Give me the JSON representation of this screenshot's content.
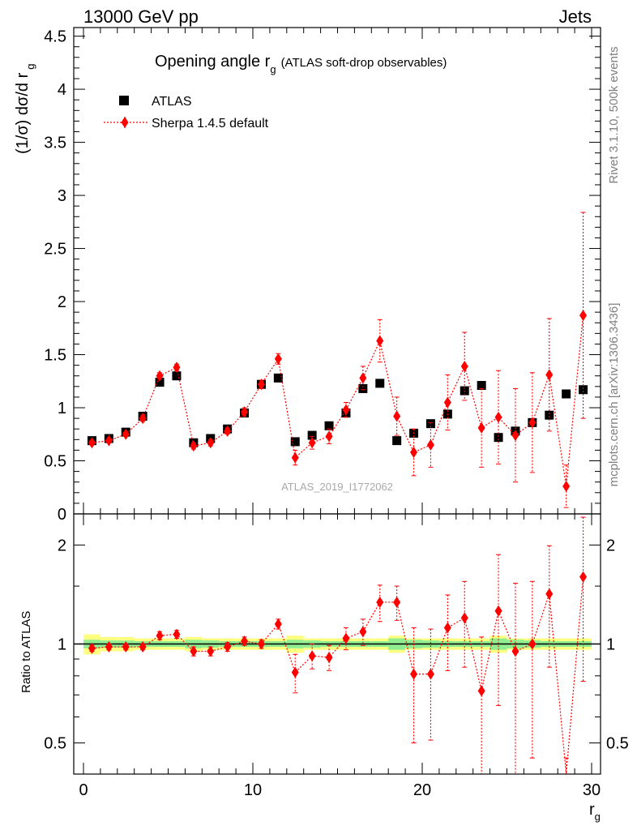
{
  "header": {
    "left": "13000 GeV pp",
    "right": "Jets"
  },
  "title": {
    "main": "Opening angle r",
    "sub": "g",
    "extra": "(ATLAS soft-drop observables)"
  },
  "side_labels": {
    "top": "Rivet 3.1.10,  500k events",
    "bottom": "mcplots.cern.ch [arXiv:1306.3436]"
  },
  "watermark": "ATLAS_2019_I1772062",
  "axes": {
    "ylabel_main": "(1/σ) dσ/d r",
    "ylabel_main_sub": "g",
    "ylabel_ratio": "Ratio to ATLAS",
    "xlabel": "r",
    "xlabel_sub": "g",
    "x_ticks": [
      "0",
      "10",
      "20",
      "30"
    ],
    "y_ticks_main": [
      "0",
      "0.5",
      "1",
      "1.5",
      "2",
      "2.5",
      "3",
      "3.5",
      "4",
      "4.5"
    ],
    "y_ticks_ratio": [
      "0.5",
      "1",
      "2"
    ]
  },
  "legend": {
    "atlas": "ATLAS",
    "sherpa": "Sherpa 1.4.5 default"
  },
  "colors": {
    "data": "#000000",
    "mc": "#ff0000",
    "band_inner": "#90ee90",
    "band_outer": "#ffff80"
  },
  "chart_data": {
    "type": "scatter",
    "xlim": [
      0,
      30
    ],
    "ylim": [
      0,
      4.6
    ],
    "ratio_ylim": [
      0.4,
      2.4
    ],
    "ratio_log": true,
    "legend_position": "top-left",
    "x": [
      0.5,
      1.5,
      2.5,
      3.5,
      4.5,
      5.5,
      6.5,
      7.5,
      8.5,
      9.5,
      10.5,
      11.5,
      12.5,
      13.5,
      14.5,
      15.5,
      16.5,
      17.5,
      18.5,
      19.5,
      20.5,
      21.5,
      22.5,
      23.5,
      24.5,
      25.5,
      26.5,
      27.5,
      28.5,
      29.5
    ],
    "series": [
      {
        "name": "ATLAS",
        "values": [
          0.69,
          0.71,
          0.77,
          0.92,
          1.24,
          1.3,
          0.67,
          0.71,
          0.8,
          0.95,
          1.22,
          1.28,
          0.68,
          0.74,
          0.83,
          0.95,
          1.18,
          1.23,
          0.69,
          0.76,
          0.85,
          0.94,
          1.16,
          1.21,
          0.72,
          0.78,
          0.86,
          0.93,
          1.13,
          1.17
        ],
        "band_inner": [
          0.03,
          0.025,
          0.025,
          0.02,
          0.02,
          0.02,
          0.03,
          0.025,
          0.02,
          0.02,
          0.02,
          0.02,
          0.03,
          0.025,
          0.02,
          0.02,
          0.02,
          0.02,
          0.04,
          0.03,
          0.025,
          0.02,
          0.02,
          0.02,
          0.04,
          0.03,
          0.025,
          0.02,
          0.02,
          0.02
        ],
        "band_outer": [
          0.07,
          0.05,
          0.05,
          0.04,
          0.04,
          0.04,
          0.05,
          0.04,
          0.04,
          0.04,
          0.04,
          0.04,
          0.06,
          0.04,
          0.04,
          0.04,
          0.04,
          0.04,
          0.06,
          0.04,
          0.04,
          0.04,
          0.04,
          0.04,
          0.06,
          0.04,
          0.04,
          0.04,
          0.04,
          0.04
        ]
      },
      {
        "name": "Sherpa 1.4.5 default",
        "values": [
          0.67,
          0.69,
          0.75,
          0.9,
          1.3,
          1.38,
          0.64,
          0.67,
          0.78,
          0.96,
          1.22,
          1.46,
          0.53,
          0.67,
          0.73,
          0.98,
          1.28,
          1.63,
          0.92,
          0.58,
          0.65,
          1.05,
          1.39,
          0.81,
          0.91,
          0.74,
          0.86,
          1.31,
          0.26,
          1.87
        ],
        "errors": [
          0.02,
          0.02,
          0.02,
          0.03,
          0.03,
          0.03,
          0.03,
          0.03,
          0.03,
          0.04,
          0.04,
          0.05,
          0.07,
          0.06,
          0.07,
          0.07,
          0.11,
          0.2,
          0.18,
          0.22,
          0.21,
          0.26,
          0.32,
          0.37,
          0.44,
          0.44,
          0.47,
          0.53,
          0.2,
          0.97
        ],
        "ratio": [
          0.97,
          0.98,
          0.98,
          0.98,
          1.06,
          1.07,
          0.95,
          0.95,
          0.98,
          1.02,
          1.0,
          1.15,
          0.82,
          0.92,
          0.91,
          1.04,
          1.09,
          1.34,
          1.34,
          0.81,
          0.81,
          1.12,
          1.2,
          0.72,
          1.26,
          0.95,
          1.0,
          1.42,
          0.25,
          1.6
        ],
        "ratio_errors": [
          0.02,
          0.02,
          0.02,
          0.02,
          0.03,
          0.03,
          0.03,
          0.03,
          0.03,
          0.03,
          0.03,
          0.04,
          0.11,
          0.08,
          0.08,
          0.08,
          0.1,
          0.17,
          0.16,
          0.31,
          0.3,
          0.29,
          0.35,
          0.33,
          0.61,
          0.58,
          0.55,
          0.57,
          0.2,
          0.83
        ]
      }
    ]
  }
}
